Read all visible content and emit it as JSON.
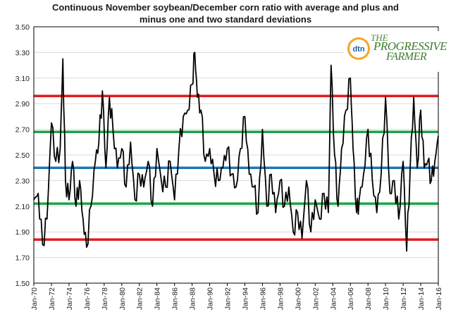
{
  "chart_data": {
    "type": "line",
    "title_line1": "Continuous November soybean/December corn ratio with average and plus and",
    "title_line2": "minus one and two standard deviations",
    "ylim": [
      1.5,
      3.5
    ],
    "xlim": [
      "Jan-70",
      "Jan-16"
    ],
    "y_ticks": [
      "3.50",
      "3.30",
      "3.10",
      "2.90",
      "2.70",
      "2.50",
      "2.30",
      "2.10",
      "1.90",
      "1.70",
      "1.50"
    ],
    "x_ticks": [
      "Jan-70",
      "Jan-72",
      "Jan-74",
      "Jan-76",
      "Jan-78",
      "Jan-80",
      "Jan-82",
      "Jan-84",
      "Jan-86",
      "Jan-88",
      "Jan-90",
      "Jan-92",
      "Jan-94",
      "Jan-96",
      "Jan-98",
      "Jan-00",
      "Jan-02",
      "Jan-04",
      "Jan-06",
      "Jan-08",
      "Jan-10",
      "Jan-12",
      "Jan-14",
      "Jan-16"
    ],
    "grid": "horizontal",
    "reference_lines": [
      {
        "value": 2.96,
        "color": "#e31a1c"
      },
      {
        "value": 2.68,
        "color": "#1ea34a"
      },
      {
        "value": 2.4,
        "color": "#1f77b4"
      },
      {
        "value": 2.12,
        "color": "#1ea34a"
      },
      {
        "value": 1.84,
        "color": "#e31a1c"
      }
    ],
    "series": [
      {
        "color": "#000000",
        "x": [
          1970.0,
          1970.5,
          1971.0,
          1971.5,
          1972.0,
          1972.5,
          1973.0,
          1973.3,
          1973.6,
          1974.0,
          1974.4,
          1974.8,
          1975.2,
          1975.6,
          1976.0,
          1976.5,
          1977.0,
          1977.4,
          1977.8,
          1978.2,
          1978.6,
          1979.0,
          1979.5,
          1980.0,
          1980.5,
          1981.0,
          1981.5,
          1982.0,
          1982.5,
          1983.0,
          1983.5,
          1984.0,
          1984.5,
          1985.0,
          1985.5,
          1986.0,
          1986.5,
          1987.0,
          1987.5,
          1988.0,
          1988.3,
          1988.6,
          1989.0,
          1989.5,
          1990.0,
          1990.5,
          1991.0,
          1991.5,
          1992.0,
          1992.5,
          1993.0,
          1993.5,
          1994.0,
          1994.5,
          1995.0,
          1995.5,
          1996.0,
          1996.5,
          1997.0,
          1997.5,
          1998.0,
          1998.5,
          1999.0,
          1999.5,
          2000.0,
          2000.5,
          2001.0,
          2001.5,
          2002.0,
          2002.5,
          2003.0,
          2003.5,
          2003.8,
          2004.2,
          2004.6,
          2005.0,
          2005.5,
          2006.0,
          2006.3,
          2006.7,
          2007.0,
          2007.5,
          2008.0,
          2008.5,
          2009.0,
          2009.5,
          2010.0,
          2010.5,
          2011.0,
          2011.5,
          2012.0,
          2012.4,
          2012.8,
          2013.2,
          2013.6,
          2014.0,
          2014.4,
          2014.8,
          2015.2,
          2015.6,
          2016.0
        ],
        "y": [
          2.15,
          2.2,
          1.8,
          2.0,
          2.75,
          2.45,
          2.55,
          3.25,
          2.3,
          2.15,
          2.45,
          2.1,
          2.3,
          2.0,
          1.78,
          2.1,
          2.45,
          2.6,
          3.0,
          2.4,
          2.95,
          2.7,
          2.4,
          2.55,
          2.25,
          2.6,
          2.15,
          2.35,
          2.25,
          2.45,
          2.1,
          2.55,
          2.3,
          2.25,
          2.45,
          2.15,
          2.55,
          2.8,
          2.85,
          3.05,
          3.3,
          2.95,
          2.85,
          2.45,
          2.55,
          2.35,
          2.3,
          2.4,
          2.55,
          2.35,
          2.25,
          2.55,
          2.8,
          2.35,
          2.25,
          2.05,
          2.7,
          2.1,
          2.35,
          2.05,
          2.3,
          2.1,
          2.25,
          1.9,
          2.05,
          1.85,
          2.3,
          1.9,
          2.15,
          2.0,
          2.2,
          2.05,
          3.2,
          2.5,
          2.1,
          2.55,
          2.85,
          3.1,
          2.55,
          2.05,
          2.15,
          2.35,
          2.7,
          2.3,
          2.05,
          2.35,
          2.95,
          2.2,
          2.3,
          2.0,
          2.45,
          1.75,
          2.4,
          2.95,
          2.4,
          2.85,
          2.4,
          2.45,
          2.3,
          2.45,
          2.65
        ]
      }
    ]
  },
  "logo": {
    "line1": "THE",
    "line2": "PROGRESSIVE",
    "line3": "FARMER",
    "badge": "dtn"
  }
}
